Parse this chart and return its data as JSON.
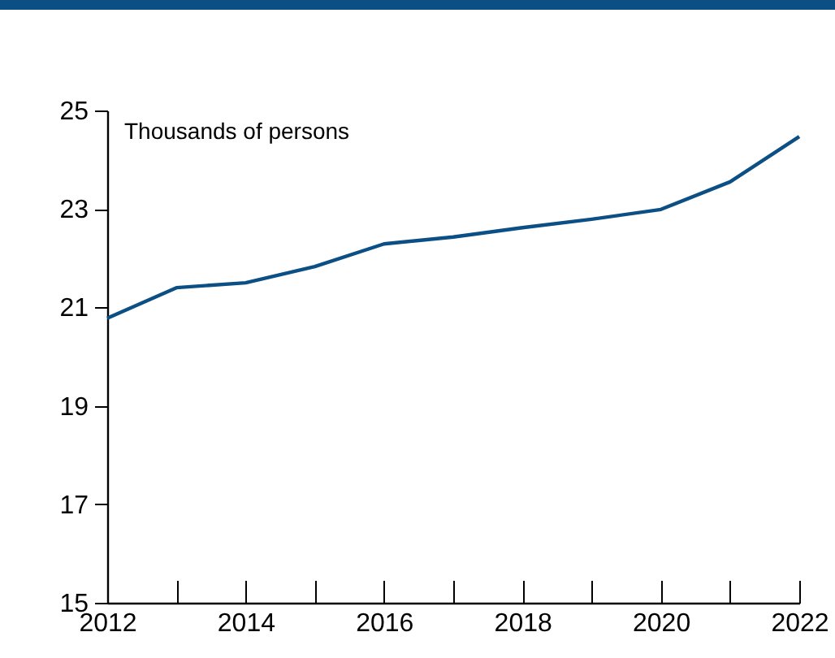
{
  "chart_data": {
    "type": "line",
    "ylabel": "Thousands of persons",
    "x": [
      2012,
      2013,
      2014,
      2015,
      2016,
      2017,
      2018,
      2019,
      2020,
      2021,
      2022
    ],
    "series": [
      {
        "color": "#0b4f85",
        "values": [
          20.78,
          21.4,
          21.5,
          21.83,
          22.29,
          22.43,
          22.62,
          22.79,
          22.99,
          23.55,
          24.47
        ]
      }
    ],
    "xlim": [
      2012,
      2022
    ],
    "xticks": [
      2012,
      {
        "value": 2013,
        "label": null
      },
      2014,
      {
        "value": 2015,
        "label": null
      },
      2016,
      {
        "value": 2017,
        "label": null
      },
      2018,
      {
        "value": 2019,
        "label": null
      },
      2020,
      {
        "value": 2021,
        "label": null
      },
      2022
    ],
    "ylim": [
      15,
      25
    ],
    "yticks": [
      15,
      17,
      19,
      21,
      23,
      25
    ],
    "grid": false,
    "legend": false,
    "marker": "none",
    "line_style": "solid"
  }
}
